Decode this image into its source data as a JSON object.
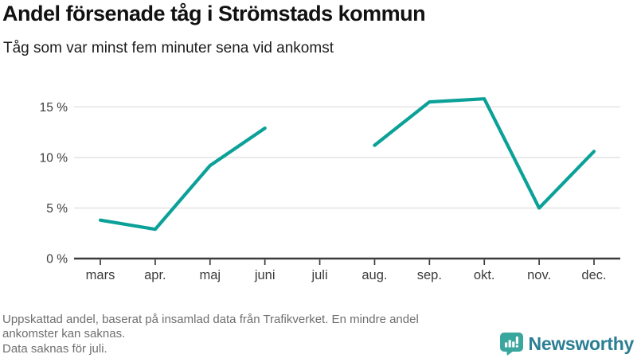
{
  "header": {
    "title": "Andel försenade tåg i Strömstads kommun",
    "subtitle": "Tåg som var minst fem minuter sena vid ankomst"
  },
  "chart_data": {
    "type": "line",
    "title": "Andel försenade tåg i Strömstads kommun",
    "subtitle": "Tåg som var minst fem minuter sena vid ankomst",
    "categories": [
      "mars",
      "apr.",
      "maj",
      "juni",
      "juli",
      "aug.",
      "sep.",
      "okt.",
      "nov.",
      "dec."
    ],
    "values": [
      3.8,
      2.9,
      9.2,
      12.9,
      null,
      11.2,
      15.5,
      15.8,
      5.0,
      10.6
    ],
    "unit": "%",
    "missing_categories": [
      "juli"
    ],
    "y_ticks": [
      {
        "value": 0,
        "label": "0 %"
      },
      {
        "value": 5,
        "label": "5 %"
      },
      {
        "value": 10,
        "label": "10 %"
      },
      {
        "value": 15,
        "label": "15 %"
      }
    ],
    "ylim": [
      0,
      17.5
    ],
    "grid": true,
    "legend": "none",
    "line_color": "#0ba198",
    "gridline_color": "#e3e3e3",
    "axis_color": "#3c3c3c"
  },
  "footer": {
    "source_note": "Uppskattad andel, baserat på insamlad data från Trafikverket. En mindre andel ankomster kan saknas.",
    "missing_note": "Data saknas för juli.",
    "logo": {
      "text": "Newsworthy",
      "icon": "newsworthy-speech-bubble-chart-icon",
      "icon_color": "#3aa79f",
      "text_color": "#2a7e93"
    }
  }
}
